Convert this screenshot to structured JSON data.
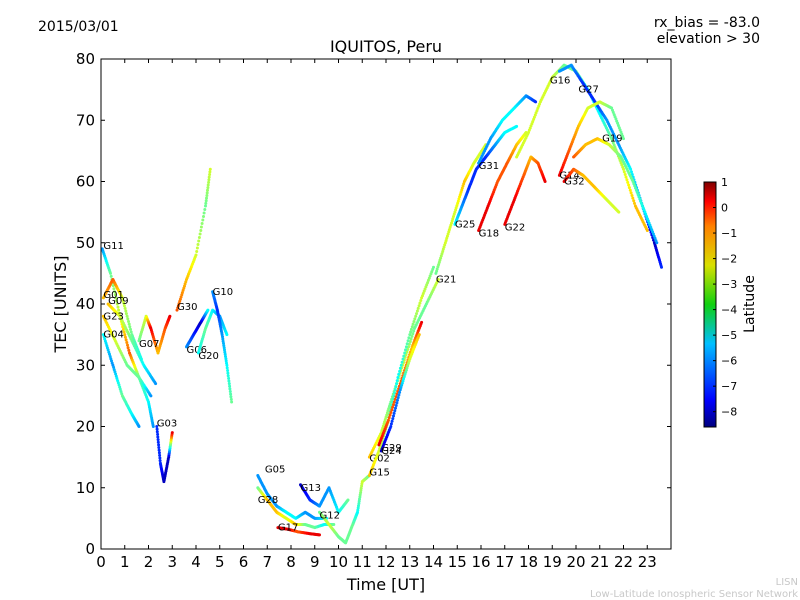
{
  "chart_data": {
    "type": "scatter",
    "title": "IQUITOS, Peru",
    "date": "2015/03/01",
    "rx_bias": "rx_bias = -83.0",
    "elevation": "elevation > 30",
    "xlabel": "Time [UT]",
    "ylabel": "TEC [UNITS]",
    "xlim": [
      0,
      24
    ],
    "ylim": [
      0,
      80
    ],
    "xticks": [
      "0",
      "1",
      "2",
      "3",
      "4",
      "5",
      "6",
      "7",
      "8",
      "9",
      "10",
      "11",
      "12",
      "13",
      "14",
      "15",
      "16",
      "17",
      "18",
      "19",
      "20",
      "21",
      "22",
      "23"
    ],
    "yticks": [
      "0",
      "10",
      "20",
      "30",
      "40",
      "50",
      "60",
      "70",
      "80"
    ],
    "colorbar": {
      "label": "Latitude",
      "min": -8.6,
      "max": 1.0,
      "ticks": [
        "1",
        "0",
        "−1",
        "−2",
        "−3",
        "−4",
        "−5",
        "−6",
        "−7",
        "−8"
      ],
      "tick_values": [
        1,
        0,
        -1,
        -2,
        -3,
        -4,
        -5,
        -6,
        -7,
        -8
      ]
    },
    "series": [
      {
        "name": "G11",
        "label_at": [
          0.1,
          49.5
        ],
        "points": [
          [
            0.05,
            49
          ],
          [
            0.4,
            45
          ],
          [
            0.8,
            38
          ],
          [
            1.2,
            32
          ],
          [
            1.6,
            28
          ],
          [
            2.0,
            24
          ],
          [
            2.2,
            20
          ]
        ],
        "lat": [
          -6,
          -4,
          -3,
          -1,
          -4,
          -5,
          -6
        ]
      },
      {
        "name": "G01",
        "label_at": [
          0.1,
          41.5
        ],
        "points": [
          [
            0.1,
            41
          ],
          [
            0.5,
            44
          ],
          [
            0.9,
            41
          ],
          [
            1.3,
            35
          ],
          [
            1.7,
            31
          ]
        ],
        "lat": [
          -2,
          -1,
          -3,
          -4,
          -5
        ]
      },
      {
        "name": "G09",
        "label_at": [
          0.3,
          40.5
        ],
        "points": [
          [
            0.3,
            40
          ],
          [
            0.8,
            38
          ],
          [
            1.3,
            34
          ],
          [
            1.8,
            30
          ],
          [
            2.3,
            27
          ]
        ],
        "lat": [
          -2,
          -3,
          -4,
          -5,
          -6
        ]
      },
      {
        "name": "G23",
        "label_at": [
          0.1,
          38
        ],
        "points": [
          [
            0.1,
            38
          ],
          [
            0.6,
            34
          ],
          [
            1.1,
            30
          ],
          [
            1.6,
            28
          ],
          [
            2.1,
            25
          ]
        ],
        "lat": [
          -2,
          -3,
          -4,
          -4,
          -6
        ]
      },
      {
        "name": "G04",
        "label_at": [
          0.1,
          35
        ],
        "points": [
          [
            0.1,
            35
          ],
          [
            0.5,
            30
          ],
          [
            0.9,
            25
          ],
          [
            1.3,
            22
          ],
          [
            1.6,
            20
          ]
        ],
        "lat": [
          -5,
          -6,
          -4,
          -5,
          -6
        ]
      },
      {
        "name": "G07",
        "label_at": [
          1.6,
          33.5
        ],
        "points": [
          [
            1.6,
            34
          ],
          [
            1.9,
            38
          ],
          [
            2.1,
            36
          ],
          [
            2.4,
            32
          ],
          [
            2.7,
            36
          ],
          [
            2.9,
            38
          ]
        ],
        "lat": [
          -4,
          -3,
          0,
          -2,
          -1,
          0
        ]
      },
      {
        "name": "G03",
        "label_at": [
          2.35,
          20.5
        ],
        "points": [
          [
            2.35,
            20
          ],
          [
            2.5,
            14
          ],
          [
            2.65,
            11
          ],
          [
            2.85,
            15
          ],
          [
            3.0,
            19
          ]
        ],
        "lat": [
          -7,
          -7,
          -8,
          -8,
          0
        ]
      },
      {
        "name": "G30",
        "label_at": [
          3.2,
          39.5
        ],
        "points": [
          [
            3.2,
            39
          ],
          [
            3.6,
            44
          ],
          [
            4.0,
            48
          ],
          [
            4.4,
            56
          ],
          [
            4.6,
            62
          ]
        ],
        "lat": [
          -1,
          -2,
          -3,
          -4,
          -3
        ]
      },
      {
        "name": "G06",
        "label_at": [
          3.6,
          32.5
        ],
        "points": [
          [
            3.6,
            33
          ],
          [
            3.9,
            35
          ],
          [
            4.2,
            37
          ],
          [
            4.5,
            39
          ]
        ],
        "lat": [
          -6,
          -7,
          -8,
          -5
        ]
      },
      {
        "name": "G20",
        "label_at": [
          4.1,
          31.5
        ],
        "points": [
          [
            4.1,
            32
          ],
          [
            4.4,
            36
          ],
          [
            4.7,
            39
          ],
          [
            5.0,
            38
          ],
          [
            5.3,
            35
          ]
        ],
        "lat": [
          -5,
          -4,
          -5,
          -6,
          -5
        ]
      },
      {
        "name": "G10",
        "label_at": [
          4.7,
          42
        ],
        "points": [
          [
            4.7,
            42
          ],
          [
            4.9,
            39
          ],
          [
            5.1,
            35
          ],
          [
            5.3,
            30
          ],
          [
            5.5,
            24
          ]
        ],
        "lat": [
          -6,
          -7,
          -6,
          -5,
          -4
        ]
      },
      {
        "name": "G05",
        "label_at": [
          6.9,
          13
        ],
        "points": [
          [
            6.6,
            12
          ],
          [
            7.0,
            9
          ],
          [
            7.4,
            7
          ],
          [
            7.8,
            6
          ],
          [
            8.2,
            5
          ],
          [
            8.6,
            6
          ],
          [
            9.0,
            5
          ],
          [
            9.5,
            5
          ]
        ],
        "lat": [
          -6,
          -6,
          -6,
          -5,
          -5,
          -6,
          -6,
          -5
        ]
      },
      {
        "name": "G28",
        "label_at": [
          6.6,
          8
        ],
        "points": [
          [
            6.6,
            10
          ],
          [
            7.0,
            8
          ],
          [
            7.4,
            6
          ],
          [
            7.8,
            5
          ],
          [
            8.2,
            4
          ],
          [
            8.6,
            4
          ],
          [
            9.0,
            3.5
          ],
          [
            9.4,
            4
          ],
          [
            9.8,
            4
          ]
        ],
        "lat": [
          -4,
          -2,
          -2,
          -3,
          -2,
          -4,
          -4,
          -5,
          -4
        ]
      },
      {
        "name": "G13",
        "label_at": [
          8.4,
          10
        ],
        "points": [
          [
            8.4,
            10.5
          ],
          [
            8.8,
            8
          ],
          [
            9.2,
            7
          ],
          [
            9.6,
            10
          ],
          [
            10.0,
            6
          ],
          [
            10.4,
            8
          ]
        ],
        "lat": [
          -8,
          -7,
          -6,
          -6,
          -5,
          -4
        ]
      },
      {
        "name": "G17",
        "label_at": [
          7.45,
          3.5
        ],
        "points": [
          [
            7.45,
            3.5
          ],
          [
            7.9,
            3.2
          ],
          [
            8.3,
            2.8
          ],
          [
            8.8,
            2.5
          ],
          [
            9.2,
            2.3
          ]
        ],
        "lat": [
          0,
          0,
          -1,
          0,
          0
        ]
      },
      {
        "name": "G12",
        "label_at": [
          9.2,
          5.5
        ],
        "points": [
          [
            9.2,
            6
          ],
          [
            9.6,
            4
          ],
          [
            10.0,
            2
          ],
          [
            10.3,
            1
          ],
          [
            10.6,
            4
          ],
          [
            10.8,
            6
          ],
          [
            11.0,
            11
          ],
          [
            11.3,
            12
          ]
        ],
        "lat": [
          -4,
          -3,
          -4,
          -4,
          -4,
          -5,
          -3,
          -4
        ]
      },
      {
        "name": "G02",
        "label_at": [
          11.3,
          14.8
        ],
        "points": [
          [
            11.3,
            15
          ],
          [
            11.8,
            19
          ],
          [
            12.2,
            24
          ],
          [
            12.7,
            30
          ],
          [
            13.2,
            36
          ],
          [
            13.7,
            40
          ],
          [
            14.2,
            44
          ]
        ],
        "lat": [
          -2,
          -3,
          -4,
          -3,
          -4,
          -4,
          -3
        ]
      },
      {
        "name": "G15",
        "label_at": [
          11.3,
          12.5
        ],
        "points": [
          [
            11.3,
            12
          ],
          [
            11.7,
            16
          ],
          [
            12.1,
            21
          ],
          [
            12.5,
            28
          ],
          [
            13.0,
            35
          ],
          [
            13.5,
            41
          ],
          [
            14.0,
            46
          ]
        ],
        "lat": [
          -2,
          -3,
          -4,
          -5,
          -4,
          -3,
          -4
        ]
      },
      {
        "name": "G29",
        "label_at": [
          11.8,
          16.5
        ],
        "points": [
          [
            11.7,
            17
          ],
          [
            12.1,
            21
          ],
          [
            12.6,
            27
          ],
          [
            13.1,
            33
          ],
          [
            13.5,
            37
          ]
        ],
        "lat": [
          0,
          -1,
          -1,
          -2,
          0
        ]
      },
      {
        "name": "G24",
        "label_at": [
          11.8,
          16
        ],
        "points": [
          [
            11.8,
            16
          ],
          [
            12.2,
            20
          ],
          [
            12.6,
            26
          ],
          [
            13.0,
            31
          ],
          [
            13.4,
            35
          ]
        ],
        "lat": [
          -8,
          -7,
          -6,
          -3,
          -2
        ]
      },
      {
        "name": "G21",
        "label_at": [
          14.1,
          44
        ],
        "points": [
          [
            14.1,
            45
          ],
          [
            14.5,
            50
          ],
          [
            14.9,
            55
          ],
          [
            15.3,
            60
          ],
          [
            15.7,
            63
          ],
          [
            16.2,
            66
          ]
        ],
        "lat": [
          -4,
          -3,
          -3,
          -2,
          -3,
          -3
        ]
      },
      {
        "name": "G25",
        "label_at": [
          14.9,
          53
        ],
        "points": [
          [
            14.9,
            53
          ],
          [
            15.2,
            56
          ],
          [
            15.5,
            59
          ],
          [
            15.8,
            62
          ],
          [
            16.2,
            64
          ],
          [
            16.6,
            66
          ],
          [
            17.0,
            68
          ],
          [
            17.5,
            69
          ]
        ],
        "lat": [
          -5,
          -6,
          -7,
          -7,
          -7,
          -6,
          -5,
          -5
        ]
      },
      {
        "name": "G31",
        "label_at": [
          15.9,
          62.5
        ],
        "points": [
          [
            15.9,
            63
          ],
          [
            16.4,
            67
          ],
          [
            16.9,
            70
          ],
          [
            17.4,
            72
          ],
          [
            17.9,
            74
          ],
          [
            18.3,
            73
          ]
        ],
        "lat": [
          -6,
          -6,
          -5,
          -5,
          -6,
          -7
        ]
      },
      {
        "name": "G18",
        "label_at": [
          15.9,
          51.5
        ],
        "points": [
          [
            15.9,
            52
          ],
          [
            16.3,
            56
          ],
          [
            16.7,
            60
          ],
          [
            17.1,
            63
          ],
          [
            17.5,
            66
          ],
          [
            17.9,
            68
          ]
        ],
        "lat": [
          0,
          0,
          -1,
          -1,
          -2,
          -3
        ]
      },
      {
        "name": "G22",
        "label_at": [
          17.0,
          52.5
        ],
        "points": [
          [
            17.0,
            53
          ],
          [
            17.4,
            57
          ],
          [
            17.8,
            61
          ],
          [
            18.1,
            64
          ],
          [
            18.4,
            63
          ],
          [
            18.7,
            60
          ]
        ],
        "lat": [
          0,
          0,
          -1,
          -2,
          -1,
          0
        ]
      },
      {
        "name": "G16",
        "label_at": [
          18.9,
          76.5
        ],
        "points": [
          [
            17.5,
            64
          ],
          [
            18.0,
            68
          ],
          [
            18.5,
            73
          ],
          [
            19.0,
            77
          ],
          [
            19.5,
            79
          ],
          [
            20.0,
            78
          ],
          [
            20.5,
            75
          ],
          [
            21.0,
            71
          ],
          [
            21.5,
            67
          ],
          [
            22.0,
            62
          ],
          [
            22.5,
            56
          ],
          [
            23.0,
            52
          ]
        ],
        "lat": [
          -3,
          -3,
          -3,
          -3,
          -4,
          -4,
          -5,
          -5,
          -4,
          -3,
          -2,
          -2
        ]
      },
      {
        "name": "G27",
        "label_at": [
          20.1,
          75
        ],
        "points": [
          [
            19.3,
            78
          ],
          [
            19.8,
            79
          ],
          [
            20.3,
            76
          ],
          [
            20.8,
            73
          ],
          [
            21.3,
            70
          ],
          [
            21.8,
            66
          ],
          [
            22.3,
            62
          ],
          [
            22.8,
            56
          ],
          [
            23.3,
            50
          ],
          [
            23.6,
            46
          ]
        ],
        "lat": [
          -6,
          -6,
          -7,
          -7,
          -6,
          -6,
          -5,
          -6,
          -8,
          -7
        ]
      },
      {
        "name": "G19",
        "label_at": [
          21.1,
          67
        ],
        "points": [
          [
            19.9,
            64
          ],
          [
            20.4,
            66
          ],
          [
            20.9,
            67
          ],
          [
            21.4,
            66
          ],
          [
            21.9,
            64
          ],
          [
            22.4,
            60
          ],
          [
            22.9,
            55
          ],
          [
            23.4,
            50
          ]
        ],
        "lat": [
          -1,
          -2,
          -2,
          -3,
          -4,
          -4,
          -5,
          -6
        ]
      },
      {
        "name": "G14",
        "label_at": [
          19.3,
          61
        ],
        "points": [
          [
            19.3,
            61
          ],
          [
            19.7,
            65
          ],
          [
            20.1,
            69
          ],
          [
            20.5,
            72
          ],
          [
            21.0,
            73
          ],
          [
            21.5,
            72
          ],
          [
            22.0,
            67
          ]
        ],
        "lat": [
          0,
          -1,
          -2,
          -3,
          -3,
          -4,
          -4
        ]
      },
      {
        "name": "G32",
        "label_at": [
          19.5,
          60
        ],
        "points": [
          [
            19.5,
            60
          ],
          [
            19.9,
            62
          ],
          [
            20.3,
            61
          ],
          [
            20.8,
            59
          ],
          [
            21.3,
            57
          ],
          [
            21.8,
            55
          ]
        ],
        "lat": [
          0,
          -1,
          -2,
          -2,
          -3,
          -3
        ]
      }
    ]
  },
  "footer": {
    "org": "LISN",
    "network": "Low-Latitude Ionospheric Sensor Network"
  }
}
